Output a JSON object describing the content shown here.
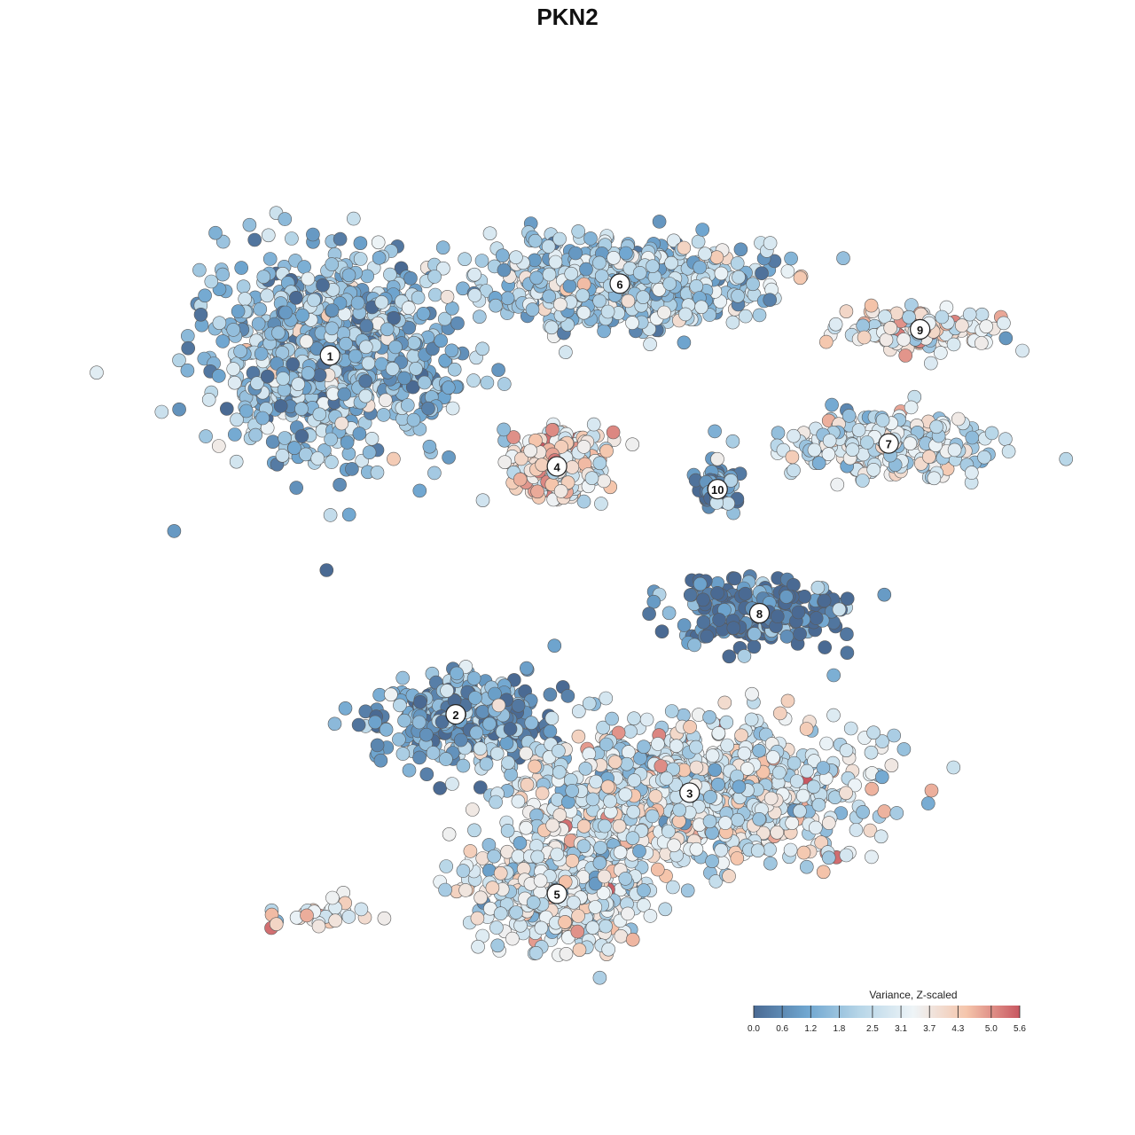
{
  "chart_data": {
    "type": "scatter",
    "title": "PKN2",
    "legend": {
      "title": "Variance, Z-scaled",
      "placement": "bottom-right",
      "ticks": [
        "0.0",
        "0.6",
        "1.2",
        "1.8",
        "2.5",
        "3.1",
        "3.7",
        "4.3",
        "5.0",
        "5.6"
      ],
      "range": [
        0.0,
        5.6
      ],
      "colors": [
        "#4a6a93",
        "#6fa6d0",
        "#b7d6e8",
        "#eef4f7",
        "#f5c5ab",
        "#c85761"
      ]
    },
    "grid": false,
    "axes_visible": false,
    "clusters": [
      {
        "label": "1",
        "x": -7.5,
        "y": 6.0,
        "spread": [
          3.0,
          2.8
        ],
        "n": 900,
        "mean": 1.7
      },
      {
        "label": "6",
        "x": 0.8,
        "y": 8.2,
        "spread": [
          3.5,
          1.2
        ],
        "n": 620,
        "mean": 2.1
      },
      {
        "label": "4",
        "x": -1.0,
        "y": 2.6,
        "spread": [
          1.3,
          1.0
        ],
        "n": 260,
        "mean": 3.6
      },
      {
        "label": "10",
        "x": 3.6,
        "y": 1.9,
        "spread": [
          0.5,
          0.6
        ],
        "n": 60,
        "mean": 0.5
      },
      {
        "label": "9",
        "x": 9.4,
        "y": 6.8,
        "spread": [
          1.8,
          0.6
        ],
        "n": 140,
        "mean": 3.4
      },
      {
        "label": "7",
        "x": 8.5,
        "y": 3.3,
        "spread": [
          2.7,
          0.9
        ],
        "n": 260,
        "mean": 2.7
      },
      {
        "label": "8",
        "x": 4.8,
        "y": -1.9,
        "spread": [
          2.2,
          0.9
        ],
        "n": 230,
        "mean": 0.3
      },
      {
        "label": "2",
        "x": -3.9,
        "y": -5.0,
        "spread": [
          2.3,
          1.3
        ],
        "n": 320,
        "mean": 1.0
      },
      {
        "label": "3",
        "x": 2.8,
        "y": -7.4,
        "spread": [
          4.5,
          1.9
        ],
        "n": 900,
        "mean": 2.9
      },
      {
        "label": "5",
        "x": -1.0,
        "y": -10.5,
        "spread": [
          2.2,
          1.4
        ],
        "n": 500,
        "mean": 2.9
      },
      {
        "label": "",
        "x": -7.8,
        "y": -11.2,
        "spread": [
          1.2,
          0.4
        ],
        "n": 35,
        "mean": 3.5
      }
    ],
    "xlim": [
      -12,
      12
    ],
    "ylim": [
      -13,
      12
    ]
  }
}
